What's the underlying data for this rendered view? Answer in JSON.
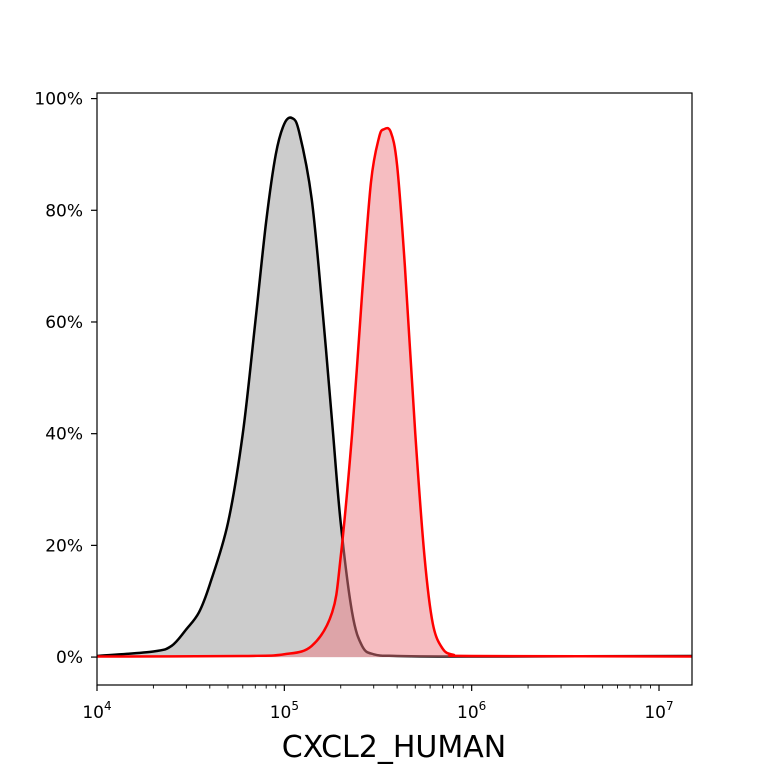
{
  "chart_data": {
    "type": "area",
    "xlabel": "CXCL2_HUMAN",
    "ylabel": "",
    "x_scale": "log",
    "xlim": [
      10000,
      15000000
    ],
    "ylim": [
      -5,
      101
    ],
    "x_ticks": [
      {
        "value": 10000,
        "base": "10",
        "exp": "4"
      },
      {
        "value": 100000,
        "base": "10",
        "exp": "5"
      },
      {
        "value": 1000000,
        "base": "10",
        "exp": "6"
      },
      {
        "value": 10000000,
        "base": "10",
        "exp": "7"
      }
    ],
    "y_ticks": [
      {
        "value": 0,
        "label": "0%"
      },
      {
        "value": 20,
        "label": "20%"
      },
      {
        "value": 40,
        "label": "40%"
      },
      {
        "value": 60,
        "label": "60%"
      },
      {
        "value": 80,
        "label": "80%"
      },
      {
        "value": 100,
        "label": "100%"
      }
    ],
    "grid": false,
    "series": [
      {
        "line_color": "#000000",
        "fill_color": "#999999",
        "points": [
          [
            10000,
            0.2
          ],
          [
            20000,
            1.0
          ],
          [
            25000,
            2.0
          ],
          [
            30000,
            5.0
          ],
          [
            35000,
            8.0
          ],
          [
            40000,
            13.0
          ],
          [
            50000,
            24.0
          ],
          [
            60000,
            40.0
          ],
          [
            70000,
            60.0
          ],
          [
            80000,
            78.0
          ],
          [
            90000,
            90.0
          ],
          [
            100000,
            95.5
          ],
          [
            110000,
            96.5
          ],
          [
            120000,
            94.0
          ],
          [
            140000,
            82.0
          ],
          [
            160000,
            62.0
          ],
          [
            180000,
            42.0
          ],
          [
            200000,
            24.0
          ],
          [
            230000,
            8.0
          ],
          [
            260000,
            2.0
          ],
          [
            300000,
            0.5
          ],
          [
            400000,
            0.2
          ],
          [
            1000000,
            0.1
          ],
          [
            15000000,
            0.2
          ]
        ]
      },
      {
        "line_color": "#ff0000",
        "fill_color": "#ee7b83",
        "points": [
          [
            10000,
            0.1
          ],
          [
            60000,
            0.2
          ],
          [
            100000,
            0.5
          ],
          [
            140000,
            2.0
          ],
          [
            180000,
            8.0
          ],
          [
            200000,
            18.0
          ],
          [
            230000,
            40.0
          ],
          [
            260000,
            65.0
          ],
          [
            290000,
            85.0
          ],
          [
            320000,
            93.0
          ],
          [
            340000,
            94.5
          ],
          [
            370000,
            94.0
          ],
          [
            400000,
            88.0
          ],
          [
            440000,
            70.0
          ],
          [
            500000,
            40.0
          ],
          [
            560000,
            18.0
          ],
          [
            620000,
            6.0
          ],
          [
            700000,
            1.5
          ],
          [
            800000,
            0.4
          ],
          [
            1000000,
            0.2
          ],
          [
            15000000,
            0.1
          ]
        ]
      }
    ]
  }
}
